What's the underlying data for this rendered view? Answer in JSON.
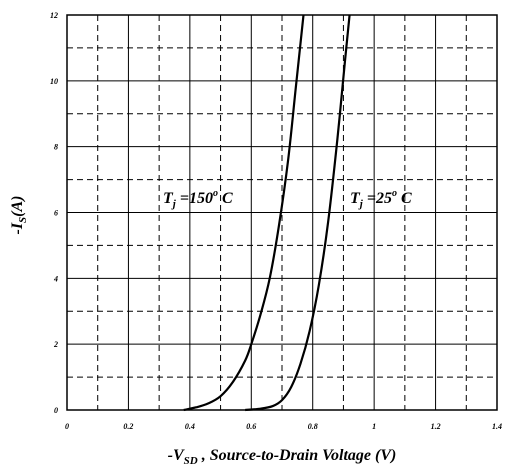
{
  "chart_data": {
    "type": "line",
    "title": "",
    "xlabel": {
      "prefix": "-V",
      "subscript": "SD",
      "suffix": " , Source-to-Drain Voltage (V)"
    },
    "ylabel": {
      "prefix": "-I",
      "subscript": "S",
      "suffix": "(A)"
    },
    "xlim": [
      0,
      1.4
    ],
    "ylim": [
      0,
      12
    ],
    "x_ticks": [
      0,
      0.2,
      0.4,
      0.6,
      0.8,
      1.0,
      1.2,
      1.4
    ],
    "x_tick_labels": [
      "0",
      "0.2",
      "0.4",
      "0.6",
      "0.8",
      "1",
      "1.2",
      "1.4"
    ],
    "y_ticks": [
      0,
      2,
      4,
      6,
      8,
      10,
      12
    ],
    "y_tick_labels": [
      "0",
      "2",
      "4",
      "6",
      "8",
      "10",
      "12"
    ],
    "grid": {
      "major_solid": true,
      "minor_dashed": true
    },
    "legend": "none",
    "series": [
      {
        "label_parts": {
          "prefix": "T",
          "subscript": "j",
          "middle": " =150",
          "superscript": "o",
          "suffix": " C"
        },
        "x": [
          0.38,
          0.42,
          0.46,
          0.5,
          0.54,
          0.58,
          0.6,
          0.63,
          0.66,
          0.69,
          0.72,
          0.745,
          0.77
        ],
        "y": [
          0.0,
          0.08,
          0.2,
          0.42,
          0.85,
          1.5,
          2.0,
          2.9,
          4.0,
          5.6,
          7.6,
          9.8,
          12.0
        ]
      },
      {
        "label_parts": {
          "prefix": "T",
          "subscript": "j",
          "middle": " =25",
          "superscript": "o",
          "suffix": " C"
        },
        "x": [
          0.58,
          0.63,
          0.67,
          0.7,
          0.73,
          0.76,
          0.79,
          0.82,
          0.85,
          0.88,
          0.905,
          0.92
        ],
        "y": [
          0.0,
          0.04,
          0.12,
          0.3,
          0.7,
          1.4,
          2.4,
          3.8,
          5.7,
          8.2,
          10.6,
          12.0
        ]
      }
    ],
    "colors": {
      "line": "#000000",
      "grid": "#000000",
      "background": "#ffffff"
    }
  }
}
